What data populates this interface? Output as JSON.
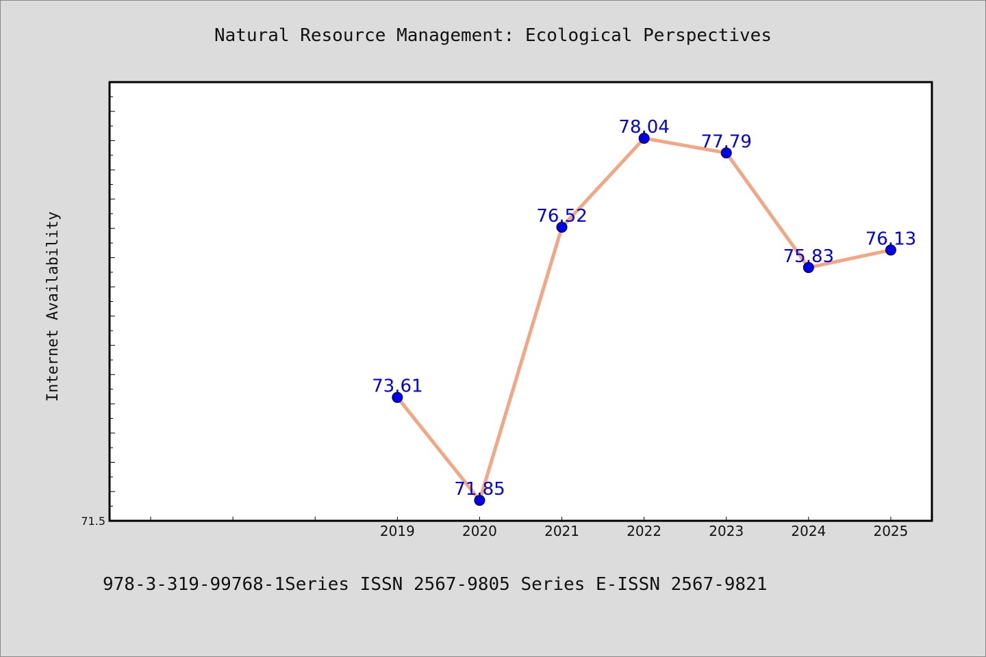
{
  "colors": {
    "background": "#dcdcdc",
    "plot_background": "#ffffff",
    "line": "#f4a582",
    "marker": "#0000ee",
    "label": "#0000ee"
  },
  "footer": "978-3-319-99768-1Series ISSN 2567-9805 Series E-ISSN 2567-9821",
  "chart_data": {
    "type": "line",
    "title": "Natural Resource Management: Ecological Perspectives",
    "xlabel": "",
    "ylabel": "Internet Availability",
    "x": [
      "2019",
      "2020",
      "2021",
      "2022",
      "2023",
      "2024",
      "2025"
    ],
    "series": [
      {
        "values": [
          73.61,
          71.85,
          76.52,
          78.04,
          77.79,
          75.83,
          76.13
        ],
        "labels": [
          "73.61",
          "71.85",
          "76.52",
          "78.04",
          "77.79",
          "75.83",
          "76.13"
        ]
      }
    ],
    "y_tick_labels": [
      "71.5"
    ],
    "ylim": [
      71.5,
      79.0
    ],
    "xlim": [
      2015.5,
      2025.5
    ],
    "grid": false,
    "legend": "none"
  }
}
